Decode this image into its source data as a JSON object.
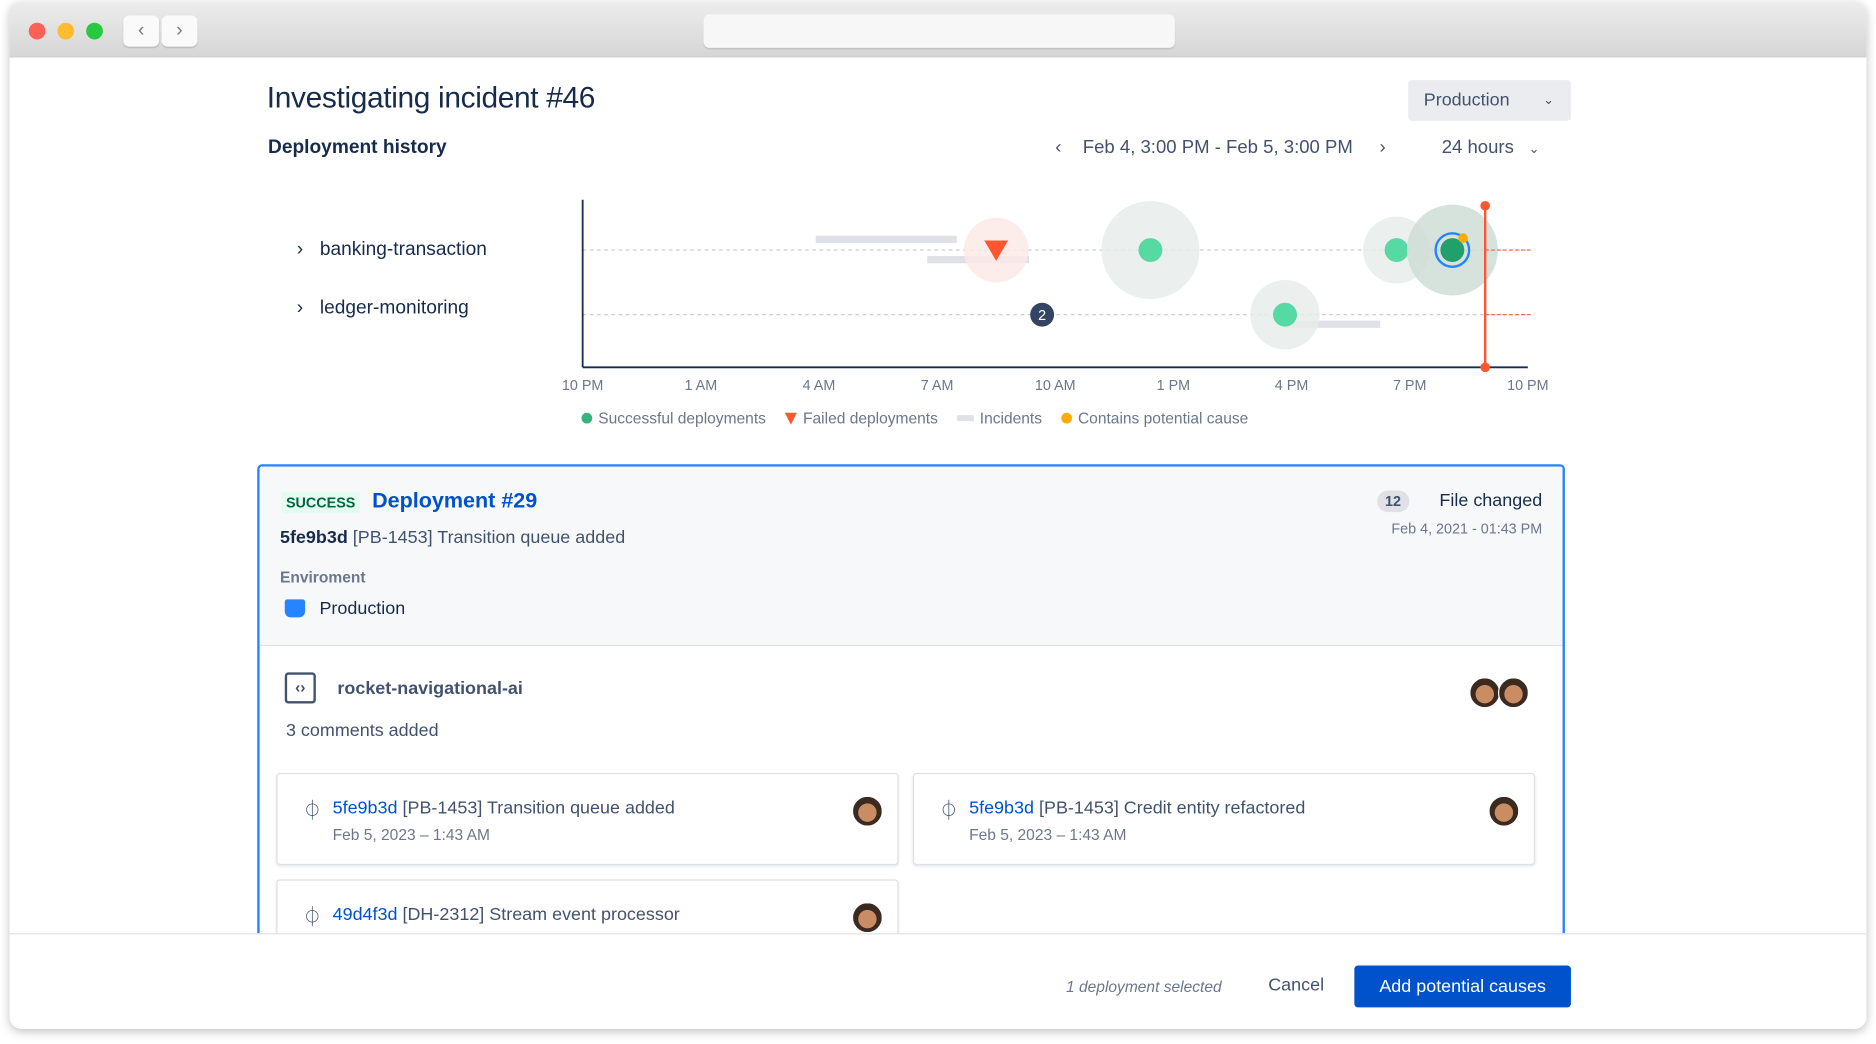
{
  "header": {
    "title": "Investigating incident #46",
    "environment_select": "Production",
    "section_title": "Deployment history",
    "date_range": "Feb 4, 3:00 PM - Feb 5, 3:00 PM",
    "duration_select": "24 hours"
  },
  "colors": {
    "success": "#36b37e",
    "failed": "#ff5630",
    "incident": "#dfe1e6",
    "potential_cause": "#ffab00",
    "now_line": "#ff5630",
    "primary": "#0052cc"
  },
  "chart_data": {
    "type": "scatter",
    "rows": [
      "banking-transaction",
      "ledger-monitoring"
    ],
    "x_ticks": [
      "10 PM",
      "1 AM",
      "4 AM",
      "7 AM",
      "10 AM",
      "1 PM",
      "4 PM",
      "7 PM",
      "10 PM"
    ],
    "now": "8:55 PM",
    "deployments": [
      {
        "row": "banking-transaction",
        "time": "8:30 AM",
        "status": "failed"
      },
      {
        "row": "banking-transaction",
        "time": "12:25 PM",
        "status": "success"
      },
      {
        "row": "banking-transaction",
        "time": "6:40 PM",
        "status": "success"
      },
      {
        "row": "banking-transaction",
        "time": "8:05 PM",
        "status": "success",
        "selected": true,
        "potential_cause": true
      },
      {
        "row": "ledger-monitoring",
        "time": "9:40 AM",
        "status": "group",
        "count": "2"
      },
      {
        "row": "ledger-monitoring",
        "time": "3:50 PM",
        "status": "success"
      }
    ],
    "incidents": [
      {
        "row": "banking-transaction",
        "start": "3:55 AM",
        "end": "7:30 AM"
      },
      {
        "row": "banking-transaction",
        "start": "6:45 AM",
        "end": "9:20 AM"
      },
      {
        "row": "ledger-monitoring",
        "start": "3:50 PM",
        "end": "6:15 PM"
      }
    ],
    "legend": [
      "Successful deployments",
      "Failed deployments",
      "Incidents",
      "Contains potential cause"
    ]
  },
  "deployment": {
    "status": "SUCCESS",
    "title": "Deployment #29",
    "commit_hash": "5fe9b3d",
    "commit_message": "[PB-1453] Transition queue added",
    "files_count": "12",
    "files_label": "File changed",
    "date": "Feb 4, 2021 - 01:43 PM",
    "env_label": "Enviroment",
    "env_value": "Production"
  },
  "repo": {
    "name": "rocket-navigational-ai",
    "comments": "3 comments added"
  },
  "commits": [
    {
      "hash": "5fe9b3d",
      "message": "[PB-1453] Transition queue added",
      "date": "Feb 5, 2023 – 1:43 AM"
    },
    {
      "hash": "5fe9b3d",
      "message": "[PB-1453] Credit entity refactored",
      "date": "Feb 5, 2023 – 1:43 AM"
    },
    {
      "hash": "49d4f3d",
      "message": "[DH-2312] Stream event processor",
      "date": ""
    }
  ],
  "footer": {
    "status": "1 deployment selected",
    "cancel": "Cancel",
    "primary": "Add potential causes"
  }
}
